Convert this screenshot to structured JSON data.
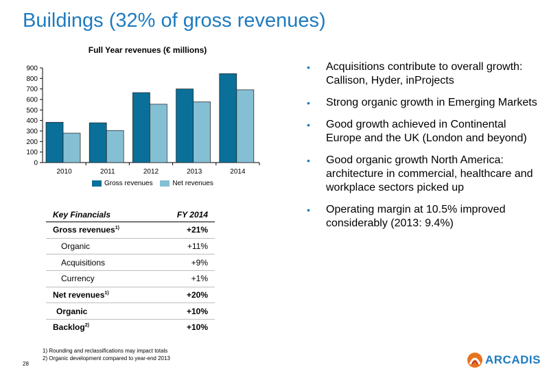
{
  "slide": {
    "title": "Buildings (32% of gross revenues)",
    "page_number": "28"
  },
  "colors": {
    "title": "#1e7bbf",
    "gross": "#0a7099",
    "net": "#85bfd4",
    "bullet": "#1e7bbf"
  },
  "chart_data": {
    "type": "bar",
    "title": "Full Year revenues (€ millions)",
    "categories": [
      "2010",
      "2011",
      "2012",
      "2013",
      "2014"
    ],
    "series": [
      {
        "name": "Gross revenues",
        "values": [
          383,
          378,
          665,
          700,
          845
        ]
      },
      {
        "name": "Net revenues",
        "values": [
          280,
          305,
          555,
          577,
          692
        ]
      }
    ],
    "ylim": [
      0,
      900
    ],
    "yticks": [
      "0",
      "100",
      "200",
      "300",
      "400",
      "500",
      "600",
      "700",
      "800",
      "900"
    ],
    "xlabel": "",
    "ylabel": "",
    "legend_position": "bottom",
    "grid": false
  },
  "bullets": [
    "Acquisitions contribute to overall growth: Callison, Hyder, inProjects",
    "Strong organic growth in Emerging Markets",
    "Good growth achieved in Continental Europe and the UK (London and beyond)",
    "Good organic growth North America: architecture in commercial, healthcare and workplace sectors picked up",
    "Operating margin at 10.5% improved considerably (2013: 9.4%)"
  ],
  "bullet_marker": "•",
  "financials": {
    "header": {
      "label": "Key Financials",
      "value": "FY 2014"
    },
    "rows": [
      {
        "label": "Gross revenues",
        "sup": "1)",
        "value": "+21%"
      },
      {
        "label": "Organic",
        "value": "+11%"
      },
      {
        "label": "Acquisitions",
        "value": "+9%"
      },
      {
        "label": "Currency",
        "value": "+1%"
      },
      {
        "label": "Net revenues",
        "sup": "1)",
        "value": "+20%"
      },
      {
        "label": "Organic",
        "value": "+10%"
      },
      {
        "label": "Backlog",
        "sup": "2)",
        "value": "+10%"
      }
    ]
  },
  "footnotes": [
    "1) Rounding and reclassifications may impact totals",
    "2) Organic development compared to year-end 2013"
  ],
  "logo": {
    "text": "ARCADIS",
    "icon": "arcadis-logo-icon"
  }
}
